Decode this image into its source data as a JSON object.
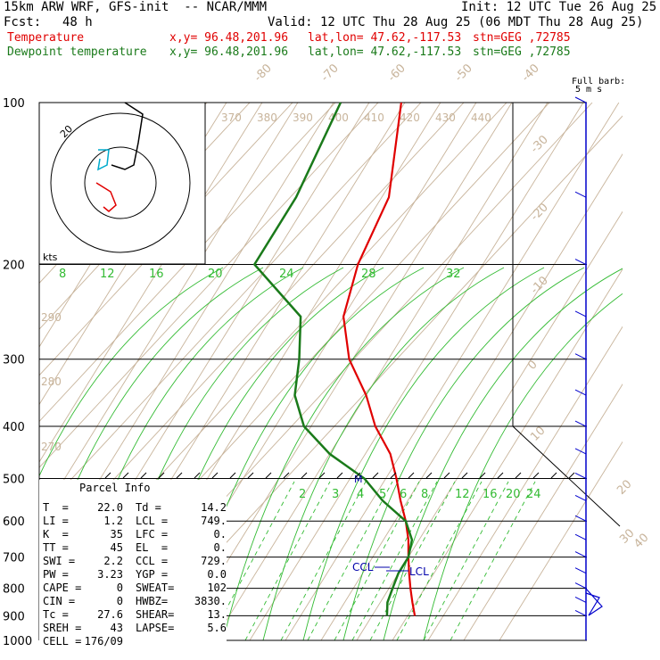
{
  "header": {
    "model": "15km ARW WRF, GFS-init  -- NCAR/MMM",
    "init": "Init: 12 UTC Tue 26 Aug 25",
    "fcst_label": "Fcst:",
    "fcst_value": "48 h",
    "valid": "Valid: 12 UTC Thu 28 Aug 25 (06 MDT Thu 28 Aug 25)",
    "temp_line": {
      "label": "Temperature",
      "xy": "x,y= 96.48,201.96",
      "latlon": "lat,lon= 47.62,-117.53",
      "stn": "stn=GEG ,72785"
    },
    "dew_line": {
      "label": "Dewpoint temperature",
      "xy": "x,y= 96.48,201.96",
      "latlon": "lat,lon= 47.62,-117.53",
      "stn": "stn=GEG ,72785"
    }
  },
  "colors": {
    "temperature": "#e00000",
    "dewpoint": "#1a7a1a",
    "isotherm": "#c8b49b",
    "mixing": "#33bb33",
    "barb": "#0000cc",
    "hodo_temp": "#e00000",
    "hodo_dew": "#00aacc"
  },
  "barb_title": [
    "Full barb:",
    "5 m s"
  ],
  "hodo_kts": "kts",
  "hodo_ring_label": "20",
  "parcel": {
    "title": "Parcel Info",
    "rows": [
      [
        "T  =",
        "22.0",
        "Td =",
        "14.2"
      ],
      [
        "LI =",
        "1.2",
        "LCL =",
        "749."
      ],
      [
        "K  =",
        "35",
        "LFC =",
        "0."
      ],
      [
        "TT =",
        "45",
        "EL  =",
        "0."
      ],
      [
        "SWI =",
        "2.2",
        "CCL =",
        "729."
      ],
      [
        "PW =",
        "3.23",
        "YGP =",
        "0.0"
      ],
      [
        "CAPE =",
        "0",
        "SWEAT=",
        "102"
      ],
      [
        "CIN =",
        "0",
        "HWBZ=",
        "3830."
      ],
      [
        "Tc =",
        "27.6",
        "SHEAR=",
        "13."
      ],
      [
        "SREH =",
        "43",
        "LAPSE=",
        "5.6"
      ],
      [
        "CELL =",
        "176/09",
        "",
        ""
      ]
    ]
  },
  "chart_data": {
    "type": "skew-t",
    "pressure_labels": [
      "100",
      "200",
      "300",
      "400",
      "500",
      "600",
      "700",
      "800",
      "900",
      "1000"
    ],
    "isotherm_labels": [
      "-80",
      "-70",
      "-60",
      "-50",
      "-40",
      "-30",
      "-20",
      "-10",
      "0",
      "10",
      "20",
      "30",
      "40"
    ],
    "theta_labels_top": [
      "370",
      "380",
      "390",
      "400",
      "410",
      "420",
      "430",
      "440"
    ],
    "theta_labels_left": [
      "290",
      "280",
      "270"
    ],
    "mixing_labels_upper": [
      "8",
      "12",
      "16",
      "20",
      "24",
      "28",
      "32"
    ],
    "mixing_labels_lower": [
      "2",
      "3",
      "4",
      "5",
      "6",
      "8",
      "12",
      "16",
      "20",
      "24"
    ],
    "annotations": {
      "ccl": "CCL",
      "lcl": "LCL",
      "mark": "M"
    },
    "temperature": [
      [
        100,
        -71
      ],
      [
        150,
        -58
      ],
      [
        200,
        -55
      ],
      [
        250,
        -50
      ],
      [
        300,
        -41
      ],
      [
        350,
        -30
      ],
      [
        400,
        -22
      ],
      [
        450,
        -13
      ],
      [
        500,
        -7
      ],
      [
        550,
        -2
      ],
      [
        600,
        3
      ],
      [
        650,
        7
      ],
      [
        700,
        10
      ],
      [
        750,
        13
      ],
      [
        800,
        16
      ],
      [
        850,
        19
      ],
      [
        900,
        22
      ]
    ],
    "dewpoint": [
      [
        100,
        -88
      ],
      [
        150,
        -84
      ],
      [
        200,
        -84
      ],
      [
        250,
        -62
      ],
      [
        300,
        -55
      ],
      [
        350,
        -50
      ],
      [
        400,
        -42
      ],
      [
        450,
        -30
      ],
      [
        500,
        -16
      ],
      [
        550,
        -7
      ],
      [
        600,
        3
      ],
      [
        650,
        8
      ],
      [
        700,
        10
      ],
      [
        750,
        10
      ],
      [
        800,
        11
      ],
      [
        850,
        12
      ],
      [
        900,
        14.2
      ]
    ],
    "winds_p": [
      100,
      150,
      200,
      250,
      300,
      350,
      400,
      450,
      500,
      550,
      600,
      650,
      700,
      750,
      800,
      850,
      900
    ]
  }
}
